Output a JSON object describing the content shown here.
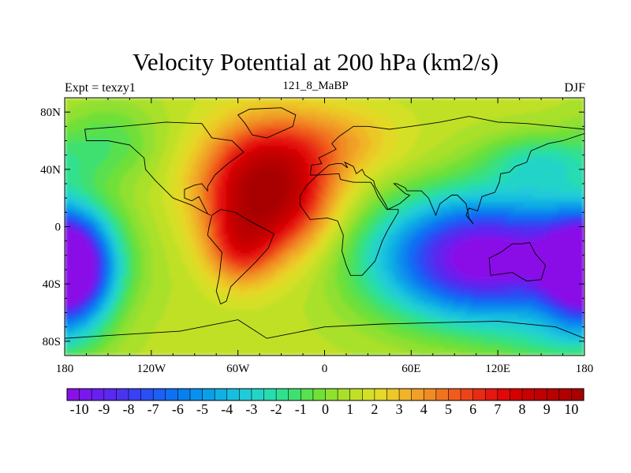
{
  "title": "Velocity Potential at 200 hPa (km2/s)",
  "subtitle_left": "Expt = texzy1",
  "subtitle_center": "121_8_MaBP",
  "subtitle_right": "DJF",
  "chart_data": {
    "type": "heatmap",
    "variable": "Velocity Potential at 200 hPa",
    "units": "km2/s",
    "season": "DJF",
    "projection": "cylindrical equidistant",
    "xlim": [
      -180,
      180
    ],
    "ylim": [
      -90,
      90
    ],
    "x_ticks": [
      {
        "value": -180,
        "label": "180"
      },
      {
        "value": -120,
        "label": "120W"
      },
      {
        "value": -60,
        "label": "60W"
      },
      {
        "value": 0,
        "label": "0"
      },
      {
        "value": 60,
        "label": "60E"
      },
      {
        "value": 120,
        "label": "120E"
      },
      {
        "value": 180,
        "label": "180"
      }
    ],
    "y_ticks": [
      {
        "value": 80,
        "label": "80N"
      },
      {
        "value": 40,
        "label": "40N"
      },
      {
        "value": 0,
        "label": "0"
      },
      {
        "value": -40,
        "label": "40S"
      },
      {
        "value": -80,
        "label": "80S"
      }
    ],
    "field_features": [
      {
        "name": "positive maximum (upper-level convergence)",
        "lon": -40,
        "lat": 25,
        "value": 10.5
      },
      {
        "name": "negative minimum (upper-level divergence)",
        "lon": 110,
        "lat": -25,
        "value": -10.5
      },
      {
        "name": "secondary negative minimum",
        "lon": -178,
        "lat": -30,
        "value": -10
      },
      {
        "name": "northern Pacific low",
        "lon": 150,
        "lat": 45,
        "value": -4
      }
    ],
    "colorbar": {
      "min": -10.5,
      "max": 10.5,
      "step": 0.5,
      "labels": [
        "-10",
        "-9",
        "-8",
        "-7",
        "-6",
        "-5",
        "-4",
        "-3",
        "-2",
        "-1",
        "0",
        "1",
        "2",
        "3",
        "4",
        "5",
        "6",
        "7",
        "8",
        "9",
        "10"
      ],
      "colors": [
        "#8a10e8",
        "#7818ec",
        "#6820f0",
        "#5a28f0",
        "#4a34f0",
        "#3a40f4",
        "#2850f4",
        "#1c60f4",
        "#1070f4",
        "#0880f0",
        "#0890ec",
        "#0aa0e8",
        "#10b0e4",
        "#18bee0",
        "#20cad8",
        "#24d4c8",
        "#28dcb0",
        "#30e090",
        "#40e070",
        "#58e050",
        "#70e038",
        "#90e030",
        "#a8e02c",
        "#c0e028",
        "#d4e028",
        "#e4d828",
        "#ecc828",
        "#f0b428",
        "#f0a028",
        "#f08c24",
        "#f07420",
        "#f05c1c",
        "#ec4418",
        "#e82c14",
        "#e41810",
        "#e00808",
        "#d40000",
        "#c80000",
        "#c00000",
        "#b80000",
        "#b00000",
        "#a80000"
      ]
    }
  }
}
